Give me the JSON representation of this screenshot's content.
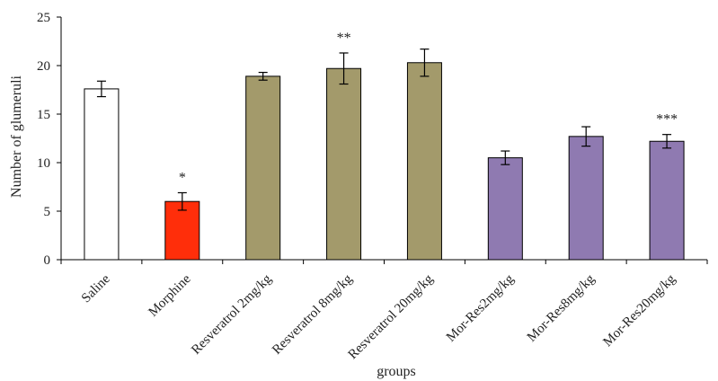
{
  "chart_data": {
    "type": "bar",
    "title": "",
    "xlabel": "groups",
    "ylabel": "Number of glumeruli",
    "ylim": [
      0,
      25
    ],
    "yticks": [
      0,
      5,
      10,
      15,
      20,
      25
    ],
    "grid": false,
    "legend": "none",
    "categories": [
      "Saline",
      "Morphine",
      "Resveratrol 2mg/kg",
      "Resveratrol 8mg/kg",
      "Resveratrol 20mg/kg",
      "Mor-Res2mg/kg",
      "Mor-Res8mg/kg",
      "Mor-Res20mg/kg"
    ],
    "values": [
      17.6,
      6.0,
      18.9,
      19.7,
      20.3,
      10.5,
      12.7,
      12.2
    ],
    "errors": [
      0.8,
      0.9,
      0.4,
      1.6,
      1.4,
      0.7,
      1.0,
      0.7
    ],
    "annotations": [
      "",
      "*",
      "",
      "**",
      "",
      "",
      "",
      "***"
    ],
    "bar_colors": [
      "#ffffff",
      "#ff2e0a",
      "#a39a6b",
      "#a39a6b",
      "#a39a6b",
      "#8f7ab1",
      "#8f7ab1",
      "#8f7ab1"
    ],
    "bar_outline": "#000000"
  }
}
